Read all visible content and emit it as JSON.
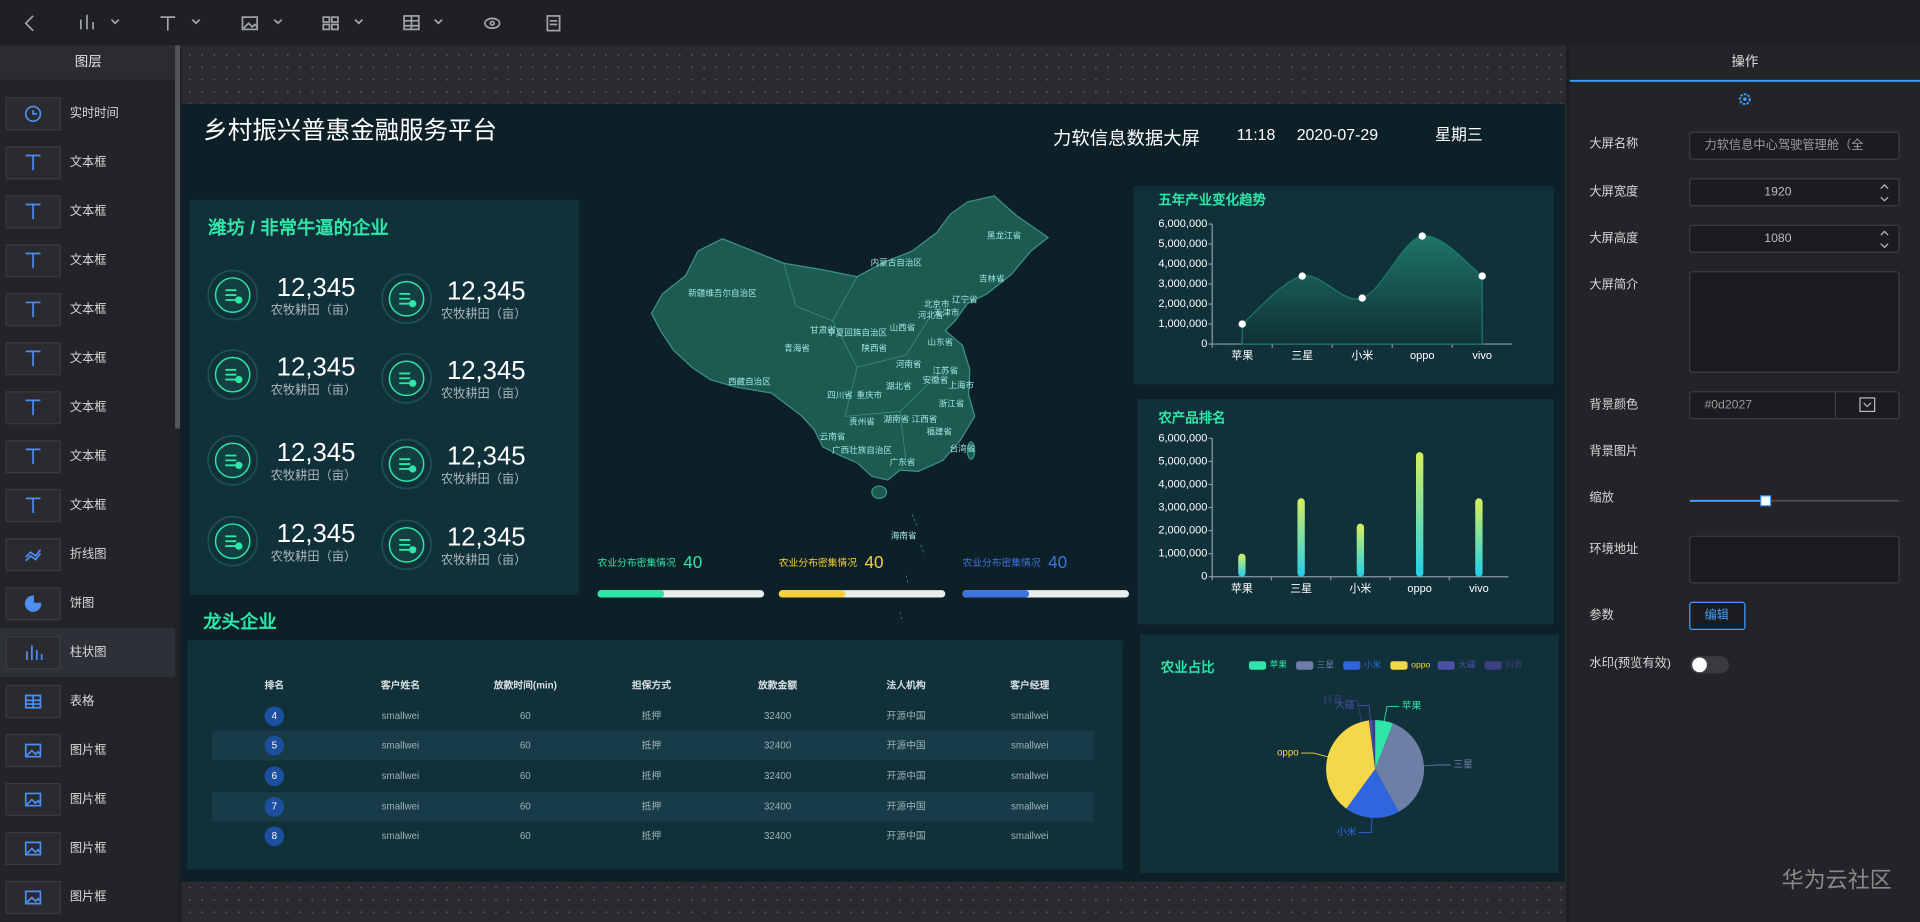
{
  "layers": {
    "title": "图层",
    "items": [
      "实时时间",
      "文本框",
      "文本框",
      "文本框",
      "文本框",
      "文本框",
      "文本框",
      "文本框",
      "文本框",
      "折线图",
      "饼图",
      "柱状图",
      "表格",
      "图片框",
      "图片框",
      "图片框",
      "图片框"
    ]
  },
  "dashboard": {
    "title": "乡村振兴普惠金融服务平台",
    "subtitle": "力软信息数据大屏",
    "time": "11:18",
    "date": "2020-07-29",
    "weekday": "星期三",
    "stats": {
      "title": "潍坊 / 非常牛逼的企业",
      "items": [
        {
          "value": "12,345",
          "label": "农牧耕田（亩）"
        },
        {
          "value": "12,345",
          "label": "农牧耕田（亩）"
        },
        {
          "value": "12,345",
          "label": "农牧耕田（亩）"
        },
        {
          "value": "12,345",
          "label": "农牧耕田（亩）"
        },
        {
          "value": "12,345",
          "label": "农牧耕田（亩）"
        },
        {
          "value": "12,345",
          "label": "农牧耕田（亩）"
        },
        {
          "value": "12,345",
          "label": "农牧耕田（亩）"
        },
        {
          "value": "12,345",
          "label": "农牧耕田（亩）"
        }
      ]
    },
    "map": {
      "labels": [
        "黑龙江省",
        "吉林省",
        "辽宁省",
        "内蒙古自治区",
        "新疆维吾尔自治区",
        "西藏自治区",
        "青海省",
        "甘肃省",
        "宁夏回族自治区",
        "陕西省",
        "山西省",
        "河北省",
        "北京市",
        "天津市",
        "山东省",
        "河南省",
        "江苏省",
        "安徽省",
        "上海市",
        "湖北省",
        "四川省",
        "重庆市",
        "浙江省",
        "贵州省",
        "湖南省",
        "江西省",
        "福建省",
        "云南省",
        "广西壮族自治区",
        "广东省",
        "台湾省",
        "海南省"
      ]
    },
    "progress": [
      {
        "label": "农业分布密集情况",
        "value": 40,
        "color": "#2ee6a8"
      },
      {
        "label": "农业分布密集情况",
        "value": 40,
        "color": "#f5d13b"
      },
      {
        "label": "农业分布密集情况",
        "value": 40,
        "color": "#3d74e0"
      }
    ],
    "table": {
      "title": "龙头企业",
      "columns": [
        "排名",
        "客户姓名",
        "放款时间(min)",
        "担保方式",
        "放款金额",
        "法人机构",
        "客户经理"
      ],
      "rows": [
        [
          "4",
          "smallwei",
          "60",
          "抵押",
          "32400",
          "开源中国",
          "smallwei"
        ],
        [
          "5",
          "smallwei",
          "60",
          "抵押",
          "32400",
          "开源中国",
          "smallwei"
        ],
        [
          "6",
          "smallwei",
          "60",
          "抵押",
          "32400",
          "开源中国",
          "smallwei"
        ],
        [
          "7",
          "smallwei",
          "60",
          "抵押",
          "32400",
          "开源中国",
          "smallwei"
        ],
        [
          "8",
          "smallwei",
          "60",
          "抵押",
          "32400",
          "开源中国",
          "smallwei"
        ]
      ]
    }
  },
  "chart_data": [
    {
      "type": "line",
      "title": "五年产业变化趋势",
      "categories": [
        "苹果",
        "三星",
        "小米",
        "oppo",
        "vivo"
      ],
      "values": [
        1000000,
        3400000,
        2300000,
        5400000,
        3400000
      ],
      "color": "#1f7a68",
      "ylim": [
        0,
        6000000
      ],
      "yticks": [
        0,
        {
          "value": 1000000,
          "label": "1,000,000"
        },
        {
          "value": 2000000,
          "label": "2,000,000"
        },
        {
          "value": 3000000,
          "label": "3,000,000"
        },
        {
          "value": 4000000,
          "label": "4,000,000"
        },
        {
          "value": 5000000,
          "label": "5,000,000"
        },
        {
          "value": 6000000,
          "label": "6,000,000"
        }
      ]
    },
    {
      "type": "bar",
      "title": "农产品排名",
      "categories": [
        "苹果",
        "三星",
        "小米",
        "oppo",
        "vivo"
      ],
      "values": [
        1000000,
        3400000,
        2300000,
        5400000,
        3400000
      ],
      "gradient": [
        "#d8ef5c",
        "#1fd0ea"
      ],
      "ylim": [
        0,
        6000000
      ],
      "yticks": [
        0,
        {
          "value": 1000000,
          "label": "1,000,000"
        },
        {
          "value": 2000000,
          "label": "2,000,000"
        },
        {
          "value": 3000000,
          "label": "3,000,000"
        },
        {
          "value": 4000000,
          "label": "4,000,000"
        },
        {
          "value": 5000000,
          "label": "5,000,000"
        },
        {
          "value": 6000000,
          "label": "6,000,000"
        }
      ]
    },
    {
      "type": "pie",
      "title": "农业占比",
      "categories": [
        "苹果",
        "三星",
        "小米",
        "oppo",
        "大疆",
        "抖音"
      ],
      "values": [
        6,
        36,
        18,
        38,
        1,
        1
      ],
      "colors": [
        "#2ee6a8",
        "#6d7fa6",
        "#2f66e0",
        "#f5d84a",
        "#4b4fa6",
        "#3d3f80"
      ]
    }
  ],
  "settings": {
    "title": "操作",
    "fields": [
      {
        "label": "大屏名称",
        "value": "力软信息中心驾驶管理舱（全"
      },
      {
        "label": "大屏宽度",
        "value": "1920"
      },
      {
        "label": "大屏高度",
        "value": "1080"
      },
      {
        "label": "大屏简介"
      },
      {
        "label": "背景颜色",
        "value": "#0d2027"
      },
      {
        "label": "背景图片"
      },
      {
        "label": "缩放"
      },
      {
        "label": "环境地址"
      },
      {
        "label": "参数",
        "button": "编辑"
      },
      {
        "label": "水印(预览有效)"
      }
    ]
  },
  "watermark": "华为云社区"
}
